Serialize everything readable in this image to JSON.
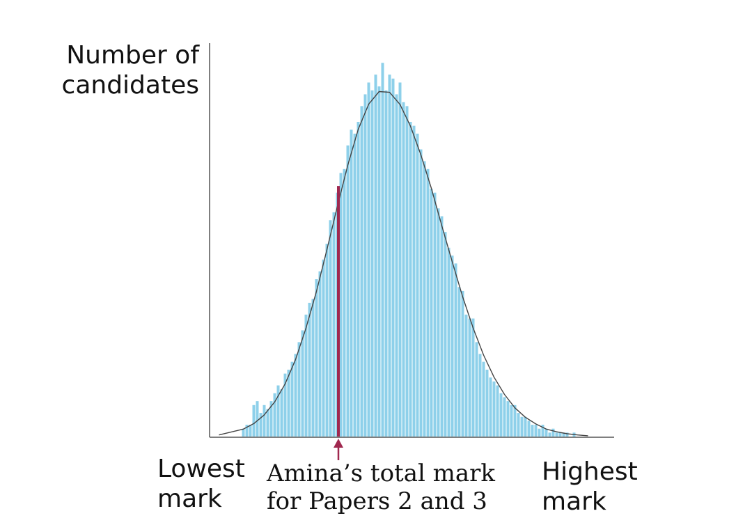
{
  "chart_data": {
    "type": "histogram",
    "y_label": "Number of candidates",
    "x_label_low": "Lowest mark",
    "x_label_high": "Highest mark",
    "xlim": [
      0,
      116
    ],
    "ylim": [
      0,
      100
    ],
    "color": "#8ed0ea",
    "bins": [
      9,
      10,
      11,
      12,
      13,
      14,
      15,
      16,
      17,
      18,
      19,
      20,
      21,
      22,
      23,
      24,
      25,
      26,
      27,
      28,
      29,
      30,
      31,
      32,
      33,
      34,
      35,
      36,
      37,
      38,
      39,
      40,
      41,
      42,
      43,
      44,
      45,
      46,
      47,
      48,
      49,
      50,
      51,
      52,
      53,
      54,
      55,
      56,
      57,
      58,
      59,
      60,
      61,
      62,
      63,
      64,
      65,
      66,
      67,
      68,
      69,
      70,
      71,
      72,
      73,
      74,
      75,
      76,
      77,
      78,
      79,
      80,
      81,
      82,
      83,
      84,
      85,
      86,
      87,
      88,
      89,
      90,
      91,
      92,
      93,
      94,
      95,
      96,
      97,
      98,
      99,
      100,
      101,
      102,
      103,
      104,
      105,
      106,
      107,
      108,
      109
    ],
    "values": [
      2,
      3,
      3,
      8,
      9,
      6,
      8,
      7,
      9,
      11,
      13,
      12,
      16,
      17,
      19,
      21,
      24,
      27,
      31,
      34,
      35,
      40,
      42,
      45,
      49,
      55,
      57,
      62,
      67,
      68,
      74,
      78,
      77,
      80,
      84,
      87,
      90,
      88,
      92,
      89,
      95,
      88,
      92,
      91,
      87,
      90,
      85,
      84,
      80,
      79,
      77,
      73,
      70,
      68,
      63,
      62,
      58,
      56,
      52,
      48,
      46,
      44,
      38,
      37,
      31,
      30,
      30,
      24,
      21,
      19,
      17,
      15,
      14,
      13,
      11,
      10,
      9,
      8,
      8,
      6,
      5,
      5,
      4,
      3,
      3,
      2,
      3,
      2,
      1,
      2,
      1,
      1,
      1,
      1,
      0,
      1,
      0,
      0,
      0,
      0
    ],
    "curve": {
      "color": "#444444",
      "x": [
        2.5,
        9.5,
        12.5,
        15.5,
        18.5,
        21.5,
        24.5,
        27.5,
        30.5,
        33.5,
        36.5,
        39.5,
        42.5,
        45.5,
        48.5,
        51.5,
        54.5,
        57.5,
        60.5,
        63.5,
        66.5,
        69.5,
        72.5,
        75.5,
        78.5,
        81.5,
        84.5,
        87.5,
        90.5,
        93.5,
        96.5,
        99.5,
        102.5,
        105.5,
        108.5
      ],
      "values": [
        0.4,
        1.9,
        3.3,
        5.5,
        8.8,
        13.4,
        19.6,
        27.6,
        36.9,
        47.5,
        58.5,
        69.0,
        78.1,
        84.5,
        87.7,
        87.5,
        84.4,
        78.9,
        71.6,
        63.1,
        53.6,
        44.4,
        35.5,
        27.6,
        20.7,
        15.1,
        10.7,
        7.3,
        4.9,
        3.2,
        1.9,
        1.2,
        0.7,
        0.4,
        0.2
      ]
    },
    "marker": {
      "x": 36.8,
      "height": 63.7,
      "color": "#a0284f",
      "label": "Amina’s total mark for Papers 2 and 3"
    }
  }
}
